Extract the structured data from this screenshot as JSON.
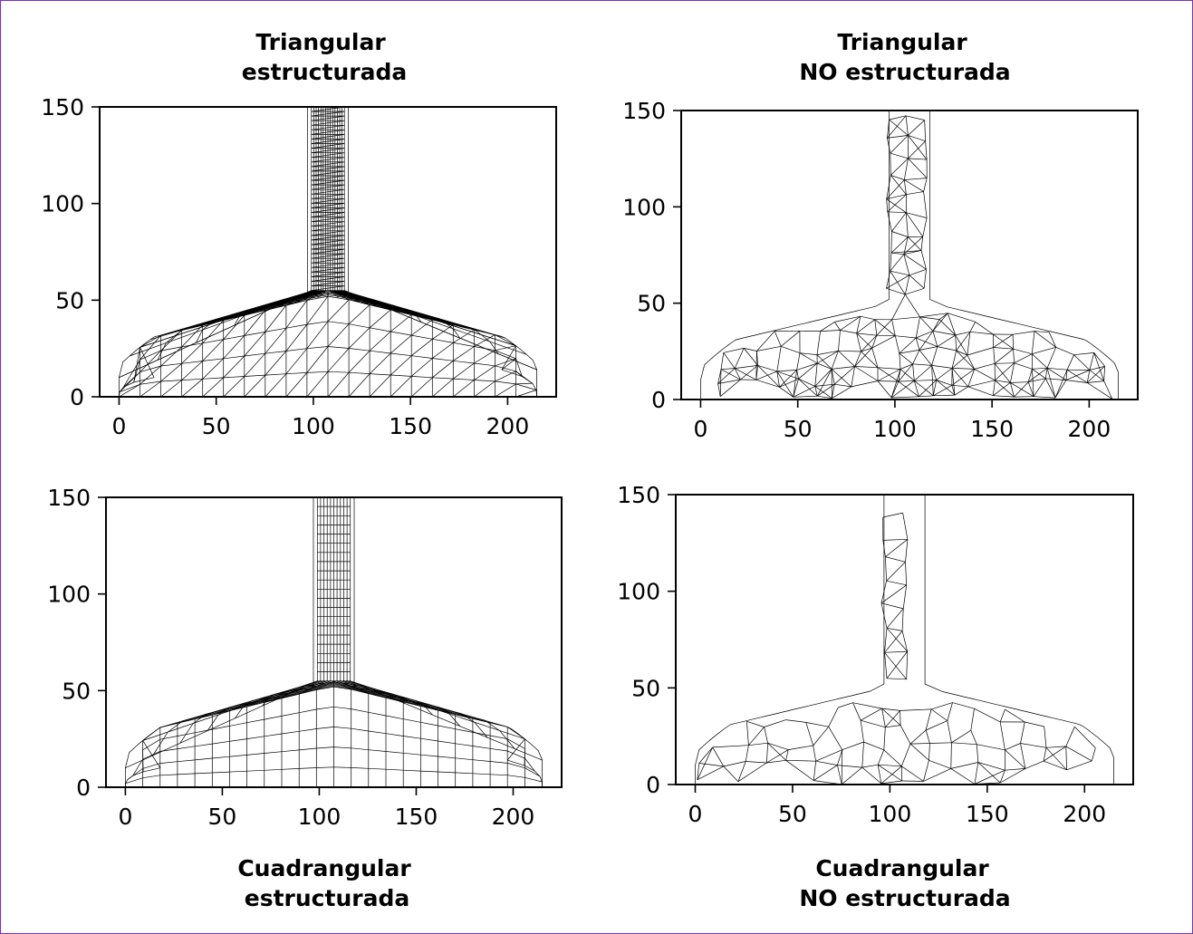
{
  "figure": {
    "border_color": "#7b2fbf",
    "mesh_color": "#000000"
  },
  "chart_data": [
    {
      "type": "mesh",
      "title_lines": [
        "Triangular",
        "estructurada"
      ],
      "element": "triangle",
      "layout": "structured",
      "xlim": [
        -10,
        225
      ],
      "ylim": [
        0,
        150
      ],
      "xticks": [
        "0",
        "50",
        "100",
        "150",
        "200"
      ],
      "yticks": [
        "0",
        "50",
        "100",
        "150"
      ],
      "grid": false
    },
    {
      "type": "mesh",
      "title_lines": [
        "Triangular",
        "NO estructurada"
      ],
      "element": "triangle",
      "layout": "unstructured",
      "xlim": [
        -10,
        225
      ],
      "ylim": [
        0,
        150
      ],
      "xticks": [
        "0",
        "50",
        "100",
        "150",
        "200"
      ],
      "yticks": [
        "0",
        "50",
        "100",
        "150"
      ],
      "grid": false
    },
    {
      "type": "mesh",
      "title_lines": [
        "Cuadrangular",
        "estructurada"
      ],
      "element": "quadrilateral",
      "layout": "structured",
      "xlim": [
        -10,
        225
      ],
      "ylim": [
        0,
        150
      ],
      "xticks": [
        "0",
        "50",
        "100",
        "150",
        "200"
      ],
      "yticks": [
        "0",
        "50",
        "100",
        "150"
      ],
      "grid": false
    },
    {
      "type": "mesh",
      "title_lines": [
        "Cuadrangular",
        "NO estructurada"
      ],
      "element": "quadrilateral",
      "layout": "unstructured",
      "xlim": [
        -10,
        225
      ],
      "ylim": [
        0,
        150
      ],
      "xticks": [
        "0",
        "50",
        "100",
        "150",
        "200"
      ],
      "yticks": [
        "0",
        "50",
        "100",
        "150"
      ],
      "grid": false
    }
  ]
}
